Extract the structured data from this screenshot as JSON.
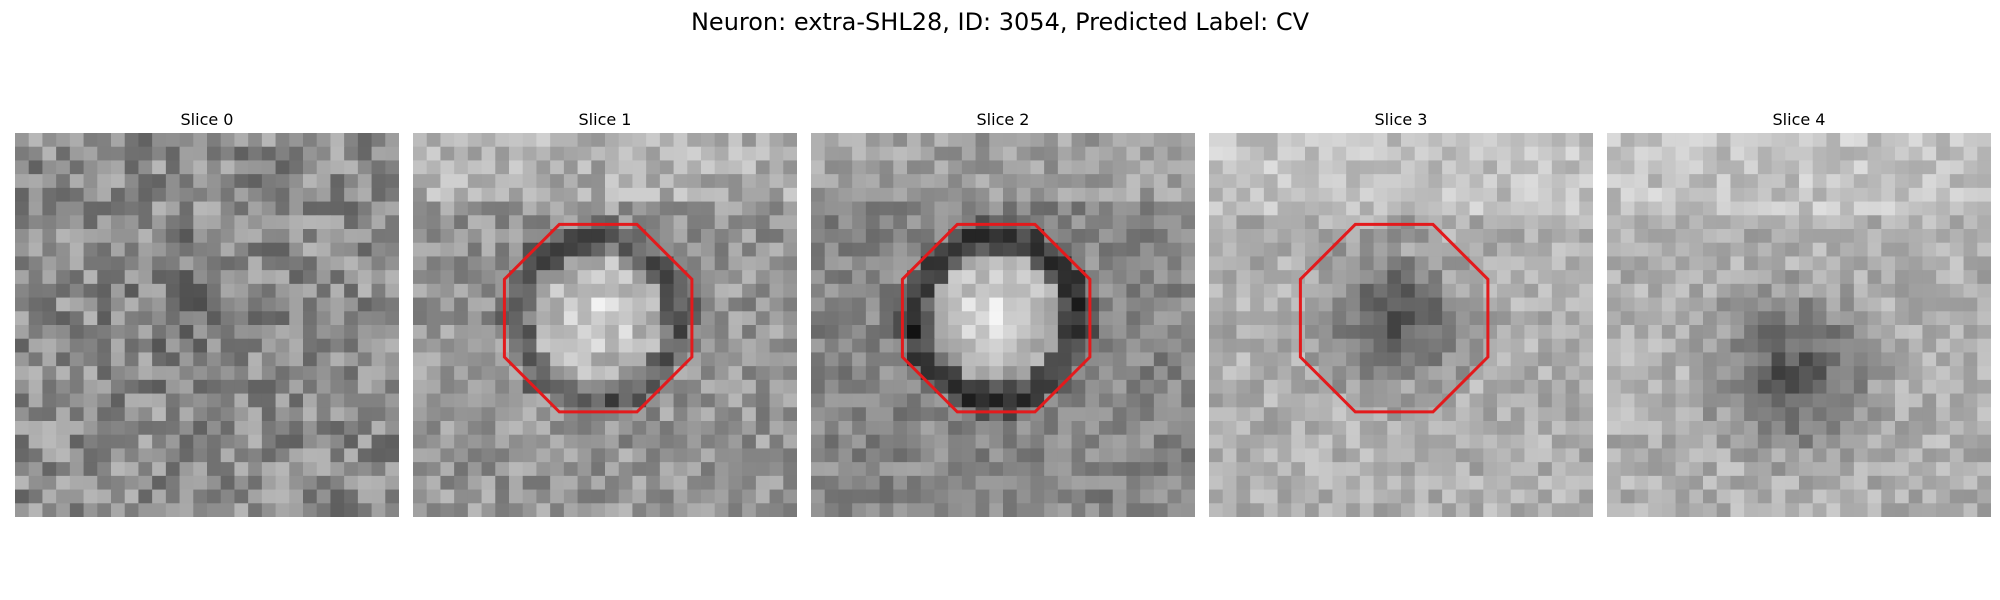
{
  "figure": {
    "title": "Neuron: extra-SHL28, ID: 3054, Predicted Label: CV"
  },
  "slices": [
    {
      "label": "Slice 0",
      "has_outline": false,
      "cell_intensity": "faint"
    },
    {
      "label": "Slice 1",
      "has_outline": true,
      "cell_intensity": "bright"
    },
    {
      "label": "Slice 2",
      "has_outline": true,
      "cell_intensity": "very-bright"
    },
    {
      "label": "Slice 3",
      "has_outline": true,
      "cell_intensity": "dark"
    },
    {
      "label": "Slice 4",
      "has_outline": false,
      "cell_intensity": "dark"
    }
  ],
  "colors": {
    "outline": "#e31a1c",
    "background": "#ffffff"
  }
}
